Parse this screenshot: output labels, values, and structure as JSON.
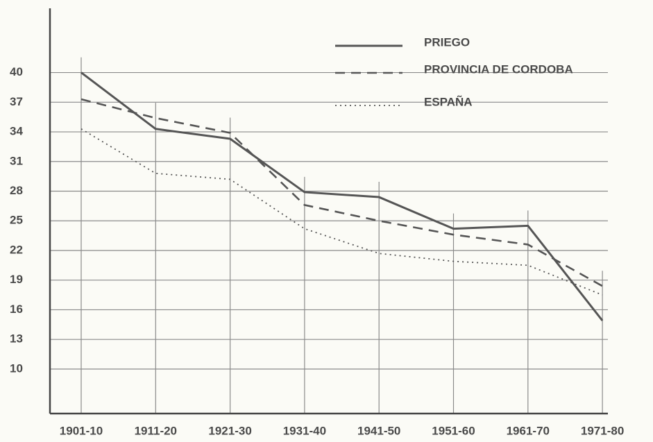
{
  "chart_data": {
    "type": "line",
    "categories": [
      "1901-10",
      "1911-20",
      "1921-30",
      "1931-40",
      "1941-50",
      "1951-60",
      "1961-70",
      "1971-80"
    ],
    "series": [
      {
        "name": "PRIEGO",
        "color": "#555555",
        "style": "solid",
        "values": [
          40.0,
          34.3,
          33.3,
          27.9,
          27.4,
          24.2,
          24.5,
          14.9
        ]
      },
      {
        "name": "PROVINCIA DE CORDOBA",
        "color": "#555555",
        "style": "dashed",
        "values": [
          37.3,
          35.4,
          33.9,
          26.6,
          25.0,
          23.6,
          22.6,
          18.4
        ]
      },
      {
        "name": "ESPAÑA",
        "color": "#555555",
        "style": "dotted",
        "values": [
          34.3,
          29.8,
          29.2,
          24.2,
          21.7,
          20.9,
          20.5,
          17.5
        ]
      }
    ],
    "ylim": [
      5.5,
      46.5
    ],
    "yticks": [
      10,
      13,
      16,
      19,
      22,
      25,
      28,
      31,
      34,
      37,
      40
    ],
    "grid": true,
    "legend": "top-right"
  }
}
